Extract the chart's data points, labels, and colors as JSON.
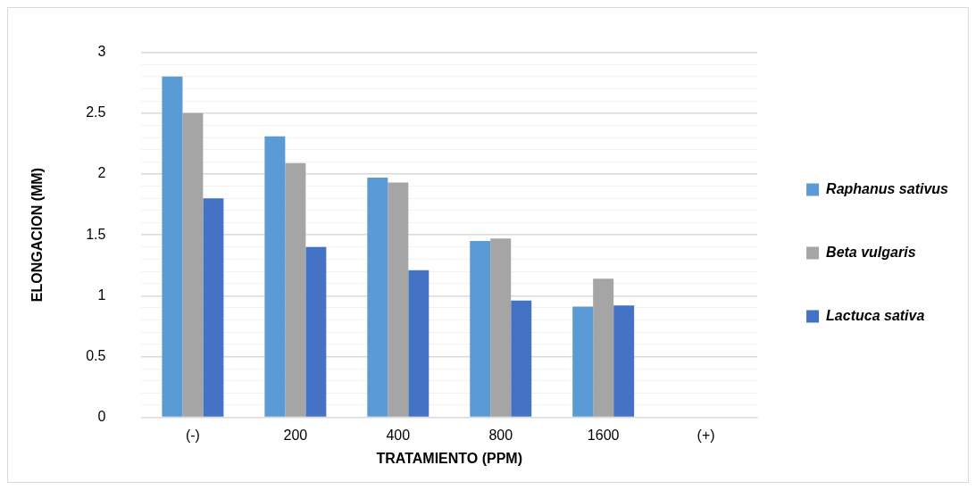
{
  "chart_data": {
    "type": "bar",
    "xlabel": "TRATAMIENTO (PPM)",
    "ylabel": "ELONGACION (MM)",
    "categories": [
      "(-)",
      "200",
      "400",
      "800",
      "1600",
      "(+)"
    ],
    "series": [
      {
        "name": "Raphanus sativus",
        "color": "#5b9bd5",
        "values": [
          2.8,
          2.31,
          1.97,
          1.45,
          0.91,
          null
        ]
      },
      {
        "name": "Beta vulgaris",
        "color": "#a5a5a5",
        "values": [
          2.5,
          2.09,
          1.93,
          1.47,
          1.14,
          null
        ]
      },
      {
        "name": "Lactuca sativa",
        "color": "#4472c4",
        "values": [
          1.8,
          1.4,
          1.21,
          0.96,
          0.92,
          null
        ]
      }
    ],
    "ylim": [
      0,
      3
    ],
    "yticks": [
      0,
      {
        "value": 0.1,
        "label": null
      },
      {
        "value": 0.2,
        "label": null
      },
      {
        "value": 0.3,
        "label": null
      },
      {
        "value": 0.4,
        "label": null
      },
      0.5,
      {
        "value": 0.6,
        "label": null
      },
      {
        "value": 0.7,
        "label": null
      },
      {
        "value": 0.8,
        "label": null
      },
      {
        "value": 0.9,
        "label": null
      },
      1,
      {
        "value": 1.1,
        "label": null
      },
      {
        "value": 1.2,
        "label": null
      },
      {
        "value": 1.3,
        "label": null
      },
      {
        "value": 1.4,
        "label": null
      },
      1.5,
      {
        "value": 1.6,
        "label": null
      },
      {
        "value": 1.7,
        "label": null
      },
      {
        "value": 1.8,
        "label": null
      },
      {
        "value": 1.9,
        "label": null
      },
      2,
      {
        "value": 2.1,
        "label": null
      },
      {
        "value": 2.2,
        "label": null
      },
      {
        "value": 2.3,
        "label": null
      },
      {
        "value": 2.4,
        "label": null
      },
      2.5,
      {
        "value": 2.6,
        "label": null
      },
      {
        "value": 2.7,
        "label": null
      },
      {
        "value": 2.8,
        "label": null
      },
      {
        "value": 2.9,
        "label": null
      },
      3
    ],
    "grid": "y",
    "legend": "right"
  }
}
